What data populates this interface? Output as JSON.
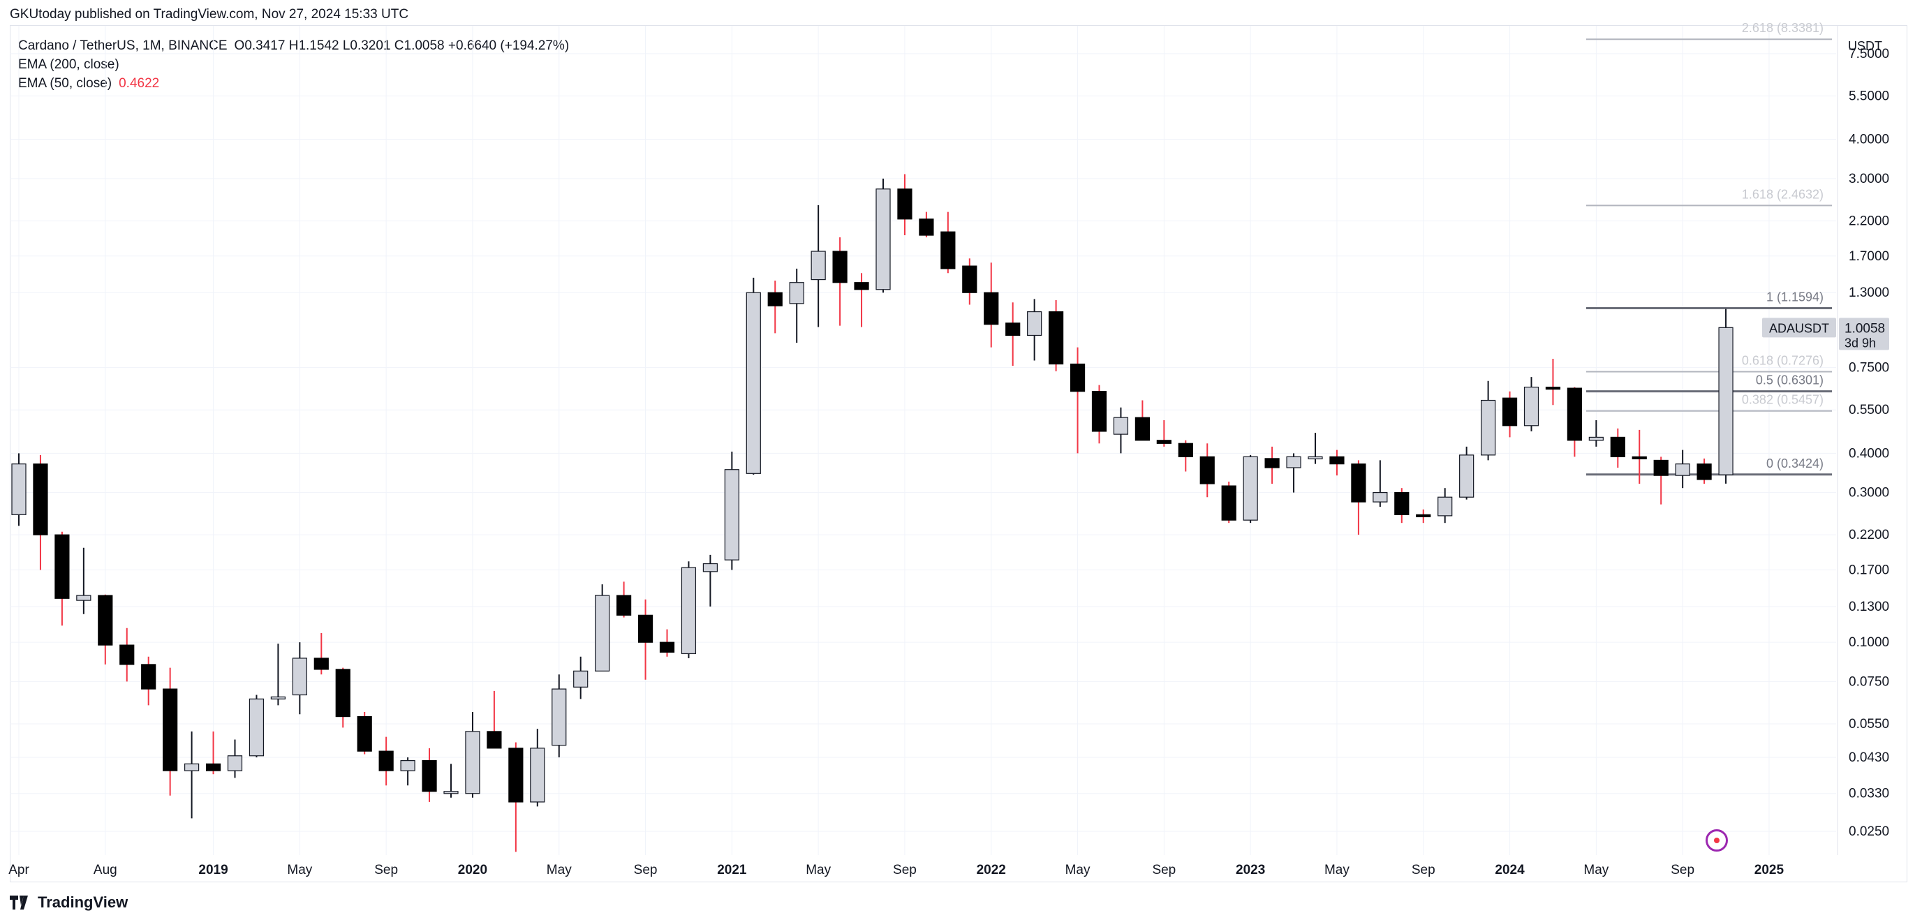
{
  "header": {
    "published": "GKUtoday published on TradingView.com, Nov 27, 2024 15:33 UTC"
  },
  "legend": {
    "symbol": "Cardano / TetherUS, 1M, BINANCE",
    "ohlc": "O0.3417  H1.1542  L0.3201  C1.0058  +0.6640 (+194.27%)",
    "ema200": "EMA (200, close)",
    "ema50": "EMA (50, close)",
    "ema50_value": "0.4622"
  },
  "footer": {
    "brand": "TradingView"
  },
  "colors": {
    "up": "#d1d4dc",
    "down": "#000000",
    "fib": "#9598a1",
    "ema": "#f23645"
  },
  "chart_data": {
    "type": "candlestick",
    "title": "Cardano / TetherUS, 1M, BINANCE",
    "scale": "log",
    "currency": "USDT",
    "ylim": [
      0.021,
      9.2
    ],
    "y_ticks": [
      7.5,
      5.5,
      4.0,
      3.0,
      2.2,
      1.7,
      1.3,
      1.0058,
      0.75,
      0.55,
      0.4,
      0.3,
      0.22,
      0.17,
      0.13,
      0.1,
      0.075,
      0.055,
      0.043,
      0.033,
      0.025
    ],
    "y_tick_labels": [
      "7.5000",
      "5.5000",
      "4.0000",
      "3.0000",
      "2.2000",
      "1.7000",
      "1.3000",
      "1.0058",
      "0.7500",
      "0.5500",
      "0.4000",
      "0.3000",
      "0.2200",
      "0.1700",
      "0.1300",
      "0.1000",
      "0.0750",
      "0.0550",
      "0.0430",
      "0.0330",
      "0.0250"
    ],
    "x_ticks": [
      {
        "label": "Apr",
        "month": "2018-04"
      },
      {
        "label": "Aug",
        "month": "2018-08"
      },
      {
        "label": "2019",
        "month": "2019-01",
        "bold": true
      },
      {
        "label": "May",
        "month": "2019-05"
      },
      {
        "label": "Sep",
        "month": "2019-09"
      },
      {
        "label": "2020",
        "month": "2020-01",
        "bold": true
      },
      {
        "label": "May",
        "month": "2020-05"
      },
      {
        "label": "Sep",
        "month": "2020-09"
      },
      {
        "label": "2021",
        "month": "2021-01",
        "bold": true
      },
      {
        "label": "May",
        "month": "2021-05"
      },
      {
        "label": "Sep",
        "month": "2021-09"
      },
      {
        "label": "2022",
        "month": "2022-01",
        "bold": true
      },
      {
        "label": "May",
        "month": "2022-05"
      },
      {
        "label": "Sep",
        "month": "2022-09"
      },
      {
        "label": "2023",
        "month": "2023-01",
        "bold": true
      },
      {
        "label": "May",
        "month": "2023-05"
      },
      {
        "label": "Sep",
        "month": "2023-09"
      },
      {
        "label": "2024",
        "month": "2024-01",
        "bold": true
      },
      {
        "label": "May",
        "month": "2024-05"
      },
      {
        "label": "Sep",
        "month": "2024-09"
      },
      {
        "label": "2025",
        "month": "2025-01",
        "bold": true
      }
    ],
    "candles": [
      {
        "m": "2018-04",
        "o": 0.255,
        "h": 0.4,
        "l": 0.235,
        "c": 0.37
      },
      {
        "m": "2018-05",
        "o": 0.37,
        "h": 0.395,
        "l": 0.17,
        "c": 0.22
      },
      {
        "m": "2018-06",
        "o": 0.22,
        "h": 0.225,
        "l": 0.113,
        "c": 0.138
      },
      {
        "m": "2018-07",
        "o": 0.136,
        "h": 0.2,
        "l": 0.123,
        "c": 0.141
      },
      {
        "m": "2018-08",
        "o": 0.141,
        "h": 0.142,
        "l": 0.085,
        "c": 0.098
      },
      {
        "m": "2018-09",
        "o": 0.098,
        "h": 0.111,
        "l": 0.075,
        "c": 0.085
      },
      {
        "m": "2018-10",
        "o": 0.085,
        "h": 0.09,
        "l": 0.063,
        "c": 0.071
      },
      {
        "m": "2018-11",
        "o": 0.071,
        "h": 0.083,
        "l": 0.0325,
        "c": 0.039
      },
      {
        "m": "2018-12",
        "o": 0.039,
        "h": 0.052,
        "l": 0.0275,
        "c": 0.041
      },
      {
        "m": "2019-01",
        "o": 0.041,
        "h": 0.052,
        "l": 0.038,
        "c": 0.039
      },
      {
        "m": "2019-02",
        "o": 0.039,
        "h": 0.049,
        "l": 0.037,
        "c": 0.0435
      },
      {
        "m": "2019-03",
        "o": 0.0435,
        "h": 0.068,
        "l": 0.043,
        "c": 0.066
      },
      {
        "m": "2019-04",
        "o": 0.066,
        "h": 0.099,
        "l": 0.063,
        "c": 0.067
      },
      {
        "m": "2019-05",
        "o": 0.068,
        "h": 0.1,
        "l": 0.059,
        "c": 0.089
      },
      {
        "m": "2019-06",
        "o": 0.089,
        "h": 0.107,
        "l": 0.079,
        "c": 0.082
      },
      {
        "m": "2019-07",
        "o": 0.082,
        "h": 0.083,
        "l": 0.0535,
        "c": 0.058
      },
      {
        "m": "2019-08",
        "o": 0.058,
        "h": 0.06,
        "l": 0.044,
        "c": 0.045
      },
      {
        "m": "2019-09",
        "o": 0.045,
        "h": 0.05,
        "l": 0.035,
        "c": 0.039
      },
      {
        "m": "2019-10",
        "o": 0.039,
        "h": 0.043,
        "l": 0.035,
        "c": 0.042
      },
      {
        "m": "2019-11",
        "o": 0.042,
        "h": 0.046,
        "l": 0.031,
        "c": 0.0335
      },
      {
        "m": "2019-12",
        "o": 0.0335,
        "h": 0.041,
        "l": 0.032,
        "c": 0.0335
      },
      {
        "m": "2020-01",
        "o": 0.033,
        "h": 0.06,
        "l": 0.032,
        "c": 0.052
      },
      {
        "m": "2020-02",
        "o": 0.052,
        "h": 0.07,
        "l": 0.046,
        "c": 0.046
      },
      {
        "m": "2020-03",
        "o": 0.046,
        "h": 0.048,
        "l": 0.0215,
        "c": 0.031
      },
      {
        "m": "2020-04",
        "o": 0.031,
        "h": 0.053,
        "l": 0.03,
        "c": 0.046
      },
      {
        "m": "2020-05",
        "o": 0.047,
        "h": 0.079,
        "l": 0.043,
        "c": 0.071
      },
      {
        "m": "2020-06",
        "o": 0.072,
        "h": 0.09,
        "l": 0.066,
        "c": 0.081
      },
      {
        "m": "2020-07",
        "o": 0.081,
        "h": 0.153,
        "l": 0.081,
        "c": 0.141
      },
      {
        "m": "2020-08",
        "o": 0.141,
        "h": 0.156,
        "l": 0.12,
        "c": 0.122
      },
      {
        "m": "2020-09",
        "o": 0.122,
        "h": 0.137,
        "l": 0.076,
        "c": 0.1
      },
      {
        "m": "2020-10",
        "o": 0.1,
        "h": 0.11,
        "l": 0.09,
        "c": 0.093
      },
      {
        "m": "2020-11",
        "o": 0.092,
        "h": 0.181,
        "l": 0.089,
        "c": 0.173
      },
      {
        "m": "2020-12",
        "o": 0.168,
        "h": 0.19,
        "l": 0.13,
        "c": 0.178
      },
      {
        "m": "2021-01",
        "o": 0.183,
        "h": 0.405,
        "l": 0.17,
        "c": 0.355
      },
      {
        "m": "2021-02",
        "o": 0.345,
        "h": 1.45,
        "l": 0.342,
        "c": 1.3
      },
      {
        "m": "2021-03",
        "o": 1.3,
        "h": 1.42,
        "l": 0.965,
        "c": 1.18
      },
      {
        "m": "2021-04",
        "o": 1.2,
        "h": 1.55,
        "l": 0.9,
        "c": 1.4
      },
      {
        "m": "2021-05",
        "o": 1.43,
        "h": 2.47,
        "l": 1.01,
        "c": 1.76
      },
      {
        "m": "2021-06",
        "o": 1.76,
        "h": 1.95,
        "l": 1.02,
        "c": 1.4
      },
      {
        "m": "2021-07",
        "o": 1.4,
        "h": 1.5,
        "l": 1.01,
        "c": 1.33
      },
      {
        "m": "2021-08",
        "o": 1.33,
        "h": 3.0,
        "l": 1.3,
        "c": 2.78
      },
      {
        "m": "2021-09",
        "o": 2.78,
        "h": 3.1,
        "l": 1.98,
        "c": 2.23
      },
      {
        "m": "2021-10",
        "o": 2.23,
        "h": 2.35,
        "l": 1.95,
        "c": 1.98
      },
      {
        "m": "2021-11",
        "o": 2.03,
        "h": 2.35,
        "l": 1.5,
        "c": 1.55
      },
      {
        "m": "2021-12",
        "o": 1.58,
        "h": 1.67,
        "l": 1.19,
        "c": 1.3
      },
      {
        "m": "2022-01",
        "o": 1.3,
        "h": 1.62,
        "l": 0.87,
        "c": 1.03
      },
      {
        "m": "2022-02",
        "o": 1.04,
        "h": 1.21,
        "l": 0.76,
        "c": 0.95
      },
      {
        "m": "2022-03",
        "o": 0.95,
        "h": 1.24,
        "l": 0.79,
        "c": 1.13
      },
      {
        "m": "2022-04",
        "o": 1.13,
        "h": 1.23,
        "l": 0.73,
        "c": 0.77
      },
      {
        "m": "2022-05",
        "o": 0.77,
        "h": 0.87,
        "l": 0.4,
        "c": 0.63
      },
      {
        "m": "2022-06",
        "o": 0.63,
        "h": 0.66,
        "l": 0.43,
        "c": 0.47
      },
      {
        "m": "2022-07",
        "o": 0.46,
        "h": 0.56,
        "l": 0.4,
        "c": 0.52
      },
      {
        "m": "2022-08",
        "o": 0.52,
        "h": 0.59,
        "l": 0.44,
        "c": 0.44
      },
      {
        "m": "2022-09",
        "o": 0.44,
        "h": 0.51,
        "l": 0.42,
        "c": 0.43
      },
      {
        "m": "2022-10",
        "o": 0.43,
        "h": 0.44,
        "l": 0.35,
        "c": 0.39
      },
      {
        "m": "2022-11",
        "o": 0.39,
        "h": 0.43,
        "l": 0.29,
        "c": 0.32
      },
      {
        "m": "2022-12",
        "o": 0.315,
        "h": 0.325,
        "l": 0.24,
        "c": 0.245
      },
      {
        "m": "2023-01",
        "o": 0.245,
        "h": 0.395,
        "l": 0.24,
        "c": 0.39
      },
      {
        "m": "2023-02",
        "o": 0.385,
        "h": 0.42,
        "l": 0.32,
        "c": 0.36
      },
      {
        "m": "2023-03",
        "o": 0.36,
        "h": 0.4,
        "l": 0.3,
        "c": 0.39
      },
      {
        "m": "2023-04",
        "o": 0.39,
        "h": 0.465,
        "l": 0.37,
        "c": 0.39
      },
      {
        "m": "2023-05",
        "o": 0.39,
        "h": 0.41,
        "l": 0.34,
        "c": 0.37
      },
      {
        "m": "2023-06",
        "o": 0.37,
        "h": 0.38,
        "l": 0.22,
        "c": 0.28
      },
      {
        "m": "2023-07",
        "o": 0.28,
        "h": 0.38,
        "l": 0.27,
        "c": 0.3
      },
      {
        "m": "2023-08",
        "o": 0.3,
        "h": 0.31,
        "l": 0.24,
        "c": 0.255
      },
      {
        "m": "2023-09",
        "o": 0.255,
        "h": 0.265,
        "l": 0.24,
        "c": 0.253
      },
      {
        "m": "2023-10",
        "o": 0.253,
        "h": 0.31,
        "l": 0.24,
        "c": 0.29
      },
      {
        "m": "2023-11",
        "o": 0.29,
        "h": 0.42,
        "l": 0.285,
        "c": 0.395
      },
      {
        "m": "2023-12",
        "o": 0.395,
        "h": 0.68,
        "l": 0.38,
        "c": 0.59
      },
      {
        "m": "2024-01",
        "o": 0.6,
        "h": 0.63,
        "l": 0.45,
        "c": 0.49
      },
      {
        "m": "2024-02",
        "o": 0.49,
        "h": 0.7,
        "l": 0.47,
        "c": 0.65
      },
      {
        "m": "2024-03",
        "o": 0.65,
        "h": 0.8,
        "l": 0.57,
        "c": 0.645
      },
      {
        "m": "2024-04",
        "o": 0.645,
        "h": 0.65,
        "l": 0.39,
        "c": 0.44
      },
      {
        "m": "2024-05",
        "o": 0.44,
        "h": 0.51,
        "l": 0.42,
        "c": 0.45
      },
      {
        "m": "2024-06",
        "o": 0.45,
        "h": 0.48,
        "l": 0.36,
        "c": 0.39
      },
      {
        "m": "2024-07",
        "o": 0.39,
        "h": 0.475,
        "l": 0.32,
        "c": 0.385
      },
      {
        "m": "2024-08",
        "o": 0.38,
        "h": 0.39,
        "l": 0.275,
        "c": 0.34
      },
      {
        "m": "2024-09",
        "o": 0.34,
        "h": 0.41,
        "l": 0.31,
        "c": 0.37
      },
      {
        "m": "2024-10",
        "o": 0.37,
        "h": 0.385,
        "l": 0.32,
        "c": 0.33
      },
      {
        "m": "2024-11",
        "o": 0.3417,
        "h": 1.1542,
        "l": 0.3201,
        "c": 1.0058
      }
    ],
    "fib_levels": [
      {
        "ratio": "2.618",
        "value": 8.3381,
        "label": "2.618 (8.3381)"
      },
      {
        "ratio": "1.618",
        "value": 2.4632,
        "label": "1.618 (2.4632)"
      },
      {
        "ratio": "1",
        "value": 1.1594,
        "label": "1 (1.1594)"
      },
      {
        "ratio": "0.618",
        "value": 0.7276,
        "label": "0.618 (0.7276)"
      },
      {
        "ratio": "0.5",
        "value": 0.6301,
        "label": "0.5 (0.6301)"
      },
      {
        "ratio": "0.382",
        "value": 0.5457,
        "label": "0.382 (0.5457)"
      },
      {
        "ratio": "0",
        "value": 0.3424,
        "label": "0 (0.3424)"
      }
    ],
    "last_price": {
      "symbol": "ADAUSDT",
      "value": "1.0058",
      "countdown": "3d 9h"
    }
  }
}
